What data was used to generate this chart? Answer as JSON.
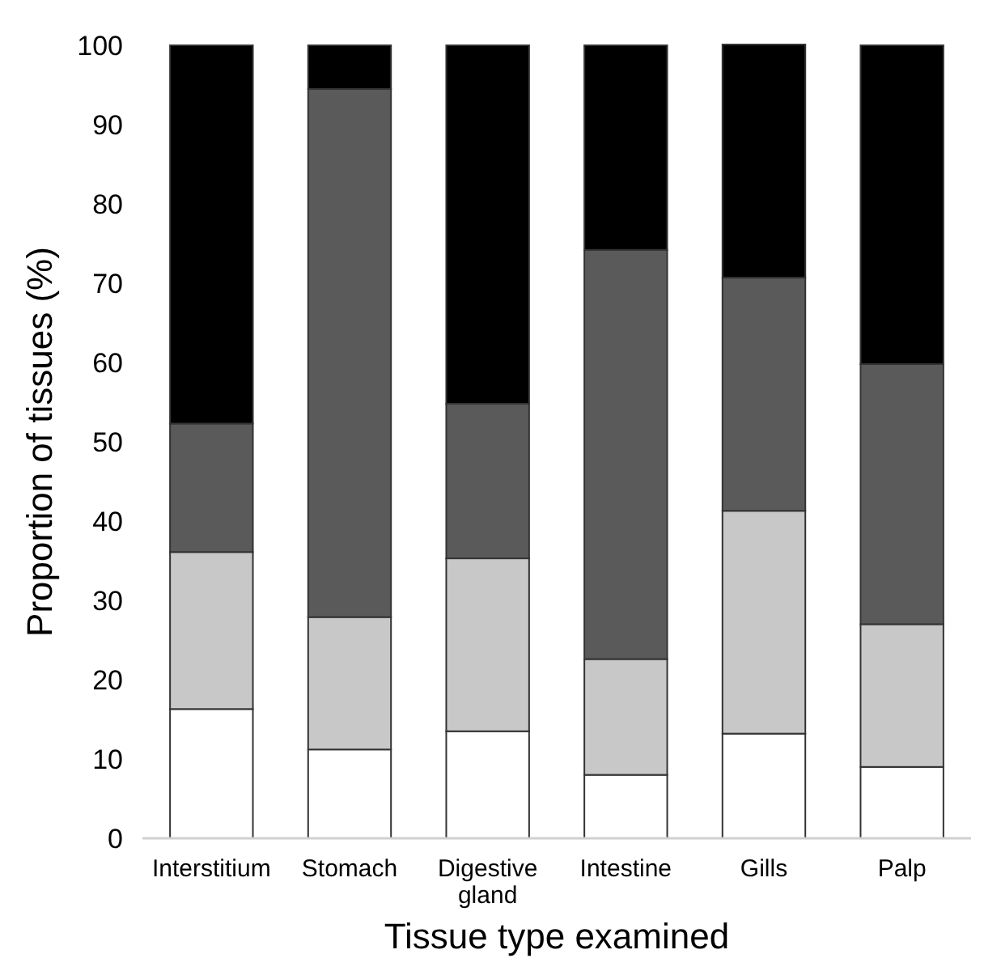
{
  "chart_data": {
    "type": "bar",
    "stacked": true,
    "xlabel": "Tissue type examined",
    "ylabel": "Proportion of tissues (%)",
    "categories": [
      "Interstitium",
      "Stomach",
      "Digestive gland",
      "Intestine",
      "Gills",
      "Palp"
    ],
    "series": [
      {
        "color": "#ffffff",
        "values": [
          16.3,
          11.2,
          13.5,
          8.0,
          13.2,
          9.0
        ]
      },
      {
        "color": "#c8c8c8",
        "values": [
          19.8,
          16.7,
          21.8,
          14.6,
          28.1,
          18.0
        ]
      },
      {
        "color": "#5a5a5a",
        "values": [
          16.2,
          66.6,
          19.5,
          51.6,
          29.4,
          32.8
        ]
      },
      {
        "color": "#000000",
        "values": [
          47.7,
          5.5,
          45.2,
          25.8,
          29.4,
          40.2
        ]
      }
    ],
    "ylim": [
      0,
      100
    ],
    "yticks": [
      0,
      10,
      20,
      30,
      40,
      50,
      60,
      70,
      80,
      90,
      100
    ],
    "grid": false
  }
}
